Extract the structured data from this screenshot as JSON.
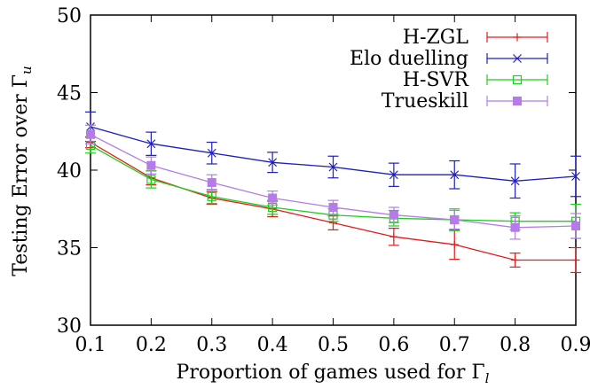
{
  "chart_data": {
    "type": "line",
    "xlabel": "Proportion of games used for Γ",
    "xlabel_subscript": "l",
    "ylabel": "Testing Error over Γ",
    "ylabel_subscript": "u",
    "xlim": [
      0.1,
      0.9
    ],
    "ylim": [
      30,
      50
    ],
    "x_ticks": [
      "0.1",
      "0.2",
      "0.3",
      "0.4",
      "0.5",
      "0.6",
      "0.7",
      "0.8",
      "0.9"
    ],
    "y_ticks": [
      "30",
      "35",
      "40",
      "45",
      "50"
    ],
    "grid": false,
    "legend_position": "top-right",
    "x": [
      0.1,
      0.2,
      0.3,
      0.4,
      0.5,
      0.6,
      0.7,
      0.8,
      0.9
    ],
    "series": [
      {
        "name": "H-ZGL",
        "color": "#e41a1c",
        "marker": "plus",
        "values": [
          41.8,
          39.5,
          38.2,
          37.5,
          36.6,
          35.7,
          35.2,
          34.2,
          34.2
        ],
        "errors": [
          0.35,
          0.45,
          0.4,
          0.5,
          0.45,
          0.55,
          0.95,
          0.45,
          0.8
        ]
      },
      {
        "name": "Elo duelling",
        "color": "#1f1fbf",
        "marker": "cross",
        "values": [
          42.8,
          41.7,
          41.1,
          40.5,
          40.2,
          39.7,
          39.7,
          39.3,
          39.6
        ],
        "errors": [
          0.95,
          0.75,
          0.7,
          0.65,
          0.7,
          0.75,
          0.9,
          1.1,
          1.3
        ]
      },
      {
        "name": "H-SVR",
        "color": "#1fcf1f",
        "marker": "open-square",
        "values": [
          41.6,
          39.4,
          38.3,
          37.6,
          37.1,
          36.9,
          36.8,
          36.7,
          36.7
        ],
        "errors": [
          0.5,
          0.55,
          0.45,
          0.45,
          0.4,
          0.5,
          0.7,
          0.55,
          1.1
        ]
      },
      {
        "name": "Trueskill",
        "color": "#b57be8",
        "marker": "filled-square",
        "values": [
          42.3,
          40.3,
          39.2,
          38.2,
          37.6,
          37.1,
          36.8,
          36.3,
          36.4
        ],
        "errors": [
          0.6,
          0.55,
          0.5,
          0.45,
          0.45,
          0.5,
          0.6,
          0.75,
          0.8
        ]
      }
    ]
  }
}
